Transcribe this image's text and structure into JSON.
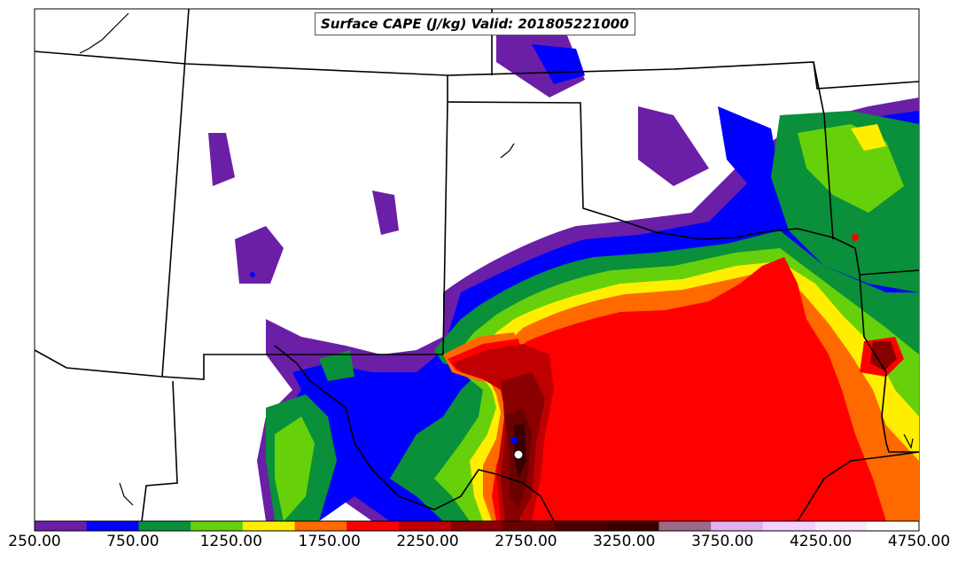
{
  "title": "Surface CAPE (J/kg) Valid: 201805221000",
  "colorbar": {
    "tick_labels": [
      "250.00",
      "750.00",
      "1250.00",
      "1750.00",
      "2250.00",
      "2750.00",
      "3250.00",
      "3750.00",
      "4250.00",
      "4750.00"
    ],
    "colors": [
      "#6a1fa6",
      "#0000ff",
      "#0a8f3a",
      "#66d10a",
      "#ffee00",
      "#ff6a00",
      "#ff0000",
      "#c00000",
      "#8a0000",
      "#6a0000",
      "#4a0000",
      "#3a0000",
      "#9e6a8a",
      "#e0b0f0",
      "#f4d0ff",
      "#fae8ff",
      "#ffffff"
    ]
  }
}
